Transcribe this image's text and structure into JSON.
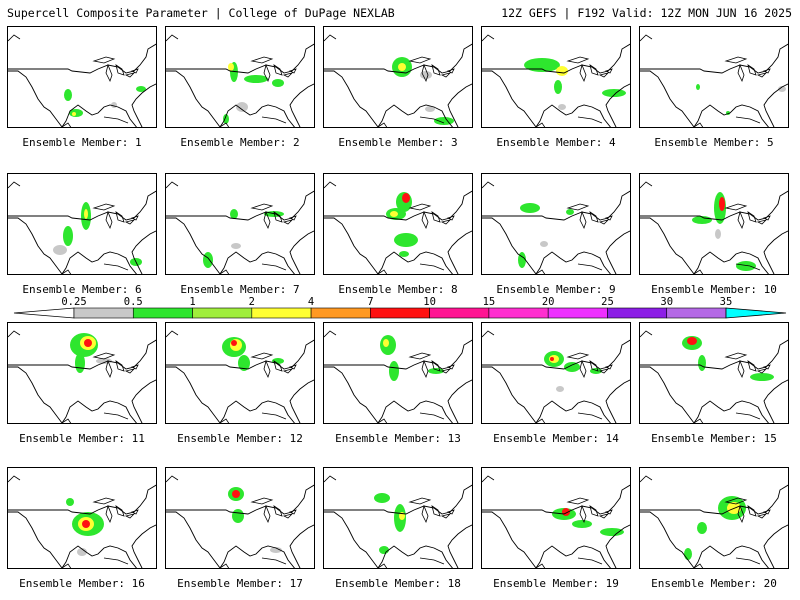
{
  "header": {
    "left": "Supercell Composite Parameter | College of DuPage NEXLAB",
    "right": "12Z GEFS | F192 Valid: 12Z MON JUN 16 2025"
  },
  "colorbar": {
    "ticks": [
      "0.25",
      "0.5",
      "1",
      "2",
      "4",
      "7",
      "10",
      "15",
      "20",
      "25",
      "30",
      "35"
    ],
    "colors": [
      "#c8c8c8",
      "#2ee62e",
      "#a0ee3c",
      "#ffff33",
      "#ff9922",
      "#ff1111",
      "#ff1493",
      "#ff2ed0",
      "#ee30ff",
      "#8c1ee6",
      "#b469e6",
      "#00ffff"
    ]
  },
  "members": [
    {
      "label": "Ensemble Member: 1",
      "blobs": [
        [
          60,
          68,
          4,
          6,
          "#2ee62e"
        ],
        [
          68,
          86,
          7,
          4,
          "#2ee62e"
        ],
        [
          66,
          87,
          2,
          2,
          "#ffff33"
        ],
        [
          106,
          78,
          3,
          3,
          "#c8c8c8"
        ],
        [
          133,
          62,
          5,
          3,
          "#2ee62e"
        ]
      ]
    },
    {
      "label": "Ensemble Member: 2",
      "blobs": [
        [
          68,
          45,
          4,
          10,
          "#2ee62e"
        ],
        [
          65,
          40,
          3,
          4,
          "#ffff33"
        ],
        [
          90,
          52,
          12,
          4,
          "#2ee62e"
        ],
        [
          112,
          56,
          6,
          4,
          "#2ee62e"
        ],
        [
          76,
          80,
          6,
          5,
          "#c8c8c8"
        ],
        [
          60,
          92,
          3,
          5,
          "#2ee62e"
        ]
      ]
    },
    {
      "label": "Ensemble Member: 3",
      "blobs": [
        [
          78,
          40,
          10,
          10,
          "#2ee62e"
        ],
        [
          78,
          40,
          4,
          4,
          "#ffff33"
        ],
        [
          102,
          48,
          6,
          4,
          "#c8c8c8"
        ],
        [
          106,
          82,
          5,
          3,
          "#c8c8c8"
        ],
        [
          120,
          94,
          10,
          4,
          "#2ee62e"
        ]
      ]
    },
    {
      "label": "Ensemble Member: 4",
      "blobs": [
        [
          60,
          38,
          18,
          7,
          "#2ee62e"
        ],
        [
          80,
          44,
          6,
          5,
          "#ffff33"
        ],
        [
          76,
          60,
          4,
          7,
          "#2ee62e"
        ],
        [
          132,
          66,
          12,
          4,
          "#2ee62e"
        ],
        [
          80,
          80,
          4,
          3,
          "#c8c8c8"
        ]
      ]
    },
    {
      "label": "Ensemble Member: 5",
      "blobs": [
        [
          58,
          60,
          2,
          3,
          "#2ee62e"
        ],
        [
          142,
          62,
          4,
          3,
          "#c8c8c8"
        ],
        [
          88,
          86,
          2,
          2,
          "#2ee62e"
        ]
      ]
    },
    {
      "label": "Ensemble Member: 6",
      "blobs": [
        [
          78,
          42,
          5,
          14,
          "#2ee62e"
        ],
        [
          78,
          40,
          2,
          5,
          "#ffff33"
        ],
        [
          60,
          62,
          5,
          10,
          "#2ee62e"
        ],
        [
          52,
          76,
          7,
          5,
          "#c8c8c8"
        ],
        [
          128,
          88,
          6,
          4,
          "#2ee62e"
        ]
      ]
    },
    {
      "label": "Ensemble Member: 7",
      "blobs": [
        [
          68,
          40,
          4,
          5,
          "#2ee62e"
        ],
        [
          108,
          40,
          10,
          3,
          "#2ee62e"
        ],
        [
          70,
          72,
          5,
          3,
          "#c8c8c8"
        ],
        [
          42,
          86,
          5,
          8,
          "#2ee62e"
        ]
      ]
    },
    {
      "label": "Ensemble Member: 8",
      "blobs": [
        [
          80,
          28,
          8,
          10,
          "#2ee62e"
        ],
        [
          82,
          24,
          4,
          5,
          "#ff1111"
        ],
        [
          72,
          40,
          10,
          6,
          "#2ee62e"
        ],
        [
          70,
          40,
          4,
          3,
          "#ffff33"
        ],
        [
          82,
          66,
          12,
          7,
          "#2ee62e"
        ],
        [
          80,
          80,
          5,
          3,
          "#2ee62e"
        ]
      ]
    },
    {
      "label": "Ensemble Member: 9",
      "blobs": [
        [
          48,
          34,
          10,
          5,
          "#2ee62e"
        ],
        [
          88,
          38,
          4,
          3,
          "#2ee62e"
        ],
        [
          62,
          70,
          4,
          3,
          "#c8c8c8"
        ],
        [
          40,
          86,
          4,
          8,
          "#2ee62e"
        ]
      ]
    },
    {
      "label": "Ensemble Member: 10",
      "blobs": [
        [
          80,
          34,
          6,
          16,
          "#2ee62e"
        ],
        [
          82,
          30,
          3,
          7,
          "#ff1111"
        ],
        [
          62,
          46,
          10,
          4,
          "#2ee62e"
        ],
        [
          78,
          60,
          3,
          5,
          "#c8c8c8"
        ],
        [
          106,
          92,
          10,
          5,
          "#2ee62e"
        ]
      ]
    },
    {
      "label": "Ensemble Member: 11",
      "blobs": [
        [
          76,
          22,
          14,
          12,
          "#2ee62e"
        ],
        [
          80,
          20,
          8,
          7,
          "#ffff33"
        ],
        [
          80,
          20,
          4,
          4,
          "#ff1111"
        ],
        [
          72,
          40,
          5,
          10,
          "#2ee62e"
        ],
        [
          96,
          38,
          8,
          3,
          "#c8c8c8"
        ]
      ]
    },
    {
      "label": "Ensemble Member: 12",
      "blobs": [
        [
          68,
          24,
          12,
          10,
          "#2ee62e"
        ],
        [
          70,
          22,
          6,
          6,
          "#ffff33"
        ],
        [
          68,
          20,
          3,
          3,
          "#ff1111"
        ],
        [
          78,
          40,
          6,
          8,
          "#2ee62e"
        ],
        [
          112,
          38,
          6,
          3,
          "#2ee62e"
        ]
      ]
    },
    {
      "label": "Ensemble Member: 13",
      "blobs": [
        [
          64,
          22,
          8,
          10,
          "#2ee62e"
        ],
        [
          62,
          20,
          3,
          4,
          "#ffff33"
        ],
        [
          70,
          48,
          5,
          10,
          "#2ee62e"
        ],
        [
          112,
          48,
          8,
          3,
          "#2ee62e"
        ]
      ]
    },
    {
      "label": "Ensemble Member: 14",
      "blobs": [
        [
          72,
          36,
          10,
          8,
          "#2ee62e"
        ],
        [
          72,
          36,
          5,
          4,
          "#ffff33"
        ],
        [
          70,
          36,
          2,
          2,
          "#ff1111"
        ],
        [
          90,
          44,
          8,
          5,
          "#2ee62e"
        ],
        [
          114,
          48,
          6,
          3,
          "#2ee62e"
        ],
        [
          78,
          66,
          4,
          3,
          "#c8c8c8"
        ]
      ]
    },
    {
      "label": "Ensemble Member: 15",
      "blobs": [
        [
          52,
          20,
          10,
          7,
          "#2ee62e"
        ],
        [
          52,
          18,
          5,
          4,
          "#ff1111"
        ],
        [
          62,
          40,
          4,
          8,
          "#2ee62e"
        ],
        [
          122,
          54,
          12,
          4,
          "#2ee62e"
        ]
      ]
    },
    {
      "label": "Ensemble Member: 16",
      "blobs": [
        [
          80,
          56,
          16,
          12,
          "#2ee62e"
        ],
        [
          78,
          56,
          8,
          7,
          "#ffff33"
        ],
        [
          78,
          56,
          4,
          4,
          "#ff1111"
        ],
        [
          62,
          34,
          4,
          4,
          "#2ee62e"
        ],
        [
          74,
          84,
          5,
          4,
          "#c8c8c8"
        ]
      ]
    },
    {
      "label": "Ensemble Member: 17",
      "blobs": [
        [
          70,
          26,
          8,
          7,
          "#2ee62e"
        ],
        [
          70,
          26,
          4,
          4,
          "#ff1111"
        ],
        [
          72,
          48,
          6,
          7,
          "#2ee62e"
        ],
        [
          110,
          82,
          6,
          3,
          "#c8c8c8"
        ]
      ]
    },
    {
      "label": "Ensemble Member: 18",
      "blobs": [
        [
          58,
          30,
          8,
          5,
          "#2ee62e"
        ],
        [
          76,
          50,
          6,
          14,
          "#2ee62e"
        ],
        [
          78,
          48,
          3,
          4,
          "#ffff33"
        ],
        [
          60,
          82,
          5,
          4,
          "#2ee62e"
        ]
      ]
    },
    {
      "label": "Ensemble Member: 19",
      "blobs": [
        [
          82,
          46,
          12,
          6,
          "#2ee62e"
        ],
        [
          84,
          44,
          4,
          4,
          "#ff1111"
        ],
        [
          100,
          56,
          10,
          4,
          "#2ee62e"
        ],
        [
          130,
          64,
          12,
          4,
          "#2ee62e"
        ]
      ]
    },
    {
      "label": "Ensemble Member: 20",
      "blobs": [
        [
          92,
          40,
          14,
          12,
          "#2ee62e"
        ],
        [
          94,
          40,
          7,
          6,
          "#ffff33"
        ],
        [
          62,
          60,
          5,
          6,
          "#2ee62e"
        ],
        [
          48,
          86,
          4,
          6,
          "#2ee62e"
        ]
      ]
    }
  ]
}
